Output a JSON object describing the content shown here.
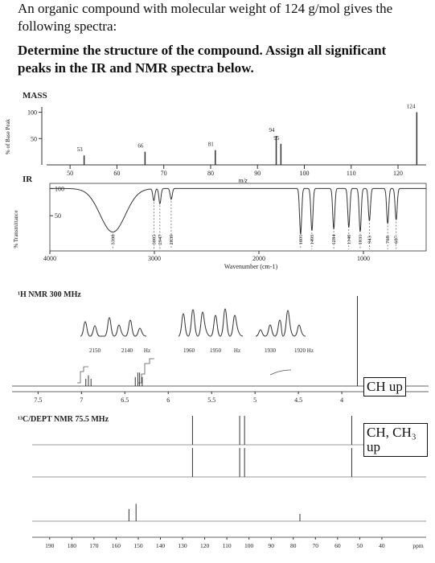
{
  "question": {
    "intro": "An organic compound with molecular weight of 124 g/mol gives the following spectra:",
    "task": "Determine the structure of the compound.  Assign all significant peaks in the IR and NMR spectra below."
  },
  "mass": {
    "type": "bar",
    "title": "MASS",
    "y_label": "% of Base Peak",
    "x_label": "m/z",
    "x": [
      53,
      66,
      81,
      94,
      95,
      124
    ],
    "values": [
      18,
      25,
      28,
      55,
      40,
      100
    ],
    "xlim": [
      45,
      126
    ],
    "ylim": [
      0,
      110
    ],
    "xticks": [
      50,
      60,
      70,
      80,
      90,
      100,
      110,
      120
    ],
    "yticks": [
      50,
      100
    ],
    "color": "#333333"
  },
  "ir": {
    "type": "line",
    "title": "IR",
    "y_label": "% Transmittance",
    "x_label": "Wavenumber (cm-1)",
    "x": [
      3398,
      3005,
      2947,
      2839,
      1601,
      1493,
      1284,
      1140,
      1031,
      943,
      768,
      687
    ],
    "values": [
      20,
      78,
      72,
      80,
      15,
      22,
      25,
      28,
      20,
      40,
      35,
      42
    ],
    "xlim": [
      4000,
      400
    ],
    "ylim": [
      0,
      105
    ],
    "xticks": [
      4000,
      3000,
      2000,
      1000
    ],
    "yticks": [
      50,
      100
    ],
    "color": "#333333"
  },
  "hnmr": {
    "type": "bar",
    "title": "¹H NMR 300 MHz",
    "x": [
      6.95,
      6.92,
      6.89,
      6.38,
      6.35,
      6.33,
      6.3,
      3.82
    ],
    "values": [
      8,
      12,
      8,
      10,
      15,
      15,
      10,
      100
    ],
    "xlim": [
      7.8,
      3.0
    ],
    "xticks": [
      7.5,
      7.0,
      6.5,
      6.0,
      5.5,
      5.0,
      4.5,
      4.0
    ],
    "inset_labels": [
      "2150",
      "2140",
      "Hz",
      "1960",
      "1950",
      "Hz",
      "1930",
      "1920 Hz"
    ],
    "annotation": "CH up",
    "color": "#333333"
  },
  "cnmr": {
    "type": "bar",
    "title": "¹³C/DEPT NMR 75.5 MHz",
    "x_label": "ppm",
    "xlim": [
      195,
      20
    ],
    "xticks": [
      190,
      180,
      170,
      160,
      150,
      140,
      130,
      120,
      110,
      100,
      90,
      80,
      70,
      60,
      50,
      40
    ],
    "annotation": "CH, CH₃ up",
    "series": [
      {
        "x": [
          125.5,
          104.2,
          102.0,
          53.6
        ],
        "values": [
          100,
          100,
          100,
          100
        ],
        "color": "#333333"
      },
      {
        "x": [
          125.5,
          104.2,
          102.0,
          53.6
        ],
        "values": [
          100,
          100,
          100,
          100
        ],
        "color": "#333333"
      },
      {
        "x": [
          154.2,
          151.0,
          77.0
        ],
        "values": [
          42,
          60,
          25
        ],
        "color": "#333333"
      }
    ]
  }
}
